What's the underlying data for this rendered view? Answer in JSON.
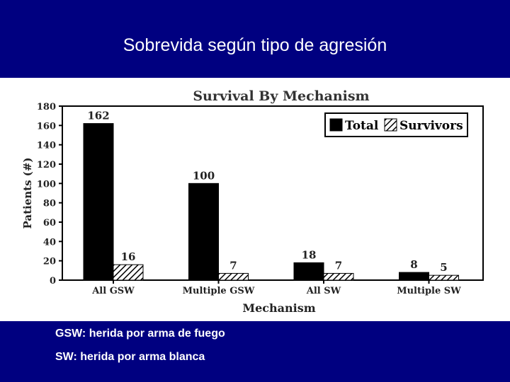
{
  "slide": {
    "title": "Sobrevida según tipo de agresión",
    "notes": [
      "GSW: herida por arma de fuego",
      "SW: herida por arma blanca"
    ]
  },
  "colors": {
    "background": "#000080",
    "panel": "#ffffff",
    "total": "#000000",
    "survivors_hatch": "#000000"
  },
  "chart_data": {
    "type": "bar",
    "title": "Survival By Mechanism",
    "xlabel": "Mechanism",
    "ylabel": "Patients (#)",
    "categories": [
      "All GSW",
      "Multiple GSW",
      "All SW",
      "Multiple SW"
    ],
    "series": [
      {
        "name": "Total",
        "values": [
          162,
          100,
          18,
          8
        ],
        "pattern": "solid"
      },
      {
        "name": "Survivors",
        "values": [
          16,
          7,
          7,
          5
        ],
        "pattern": "hatched"
      }
    ],
    "ylim": [
      0,
      180
    ],
    "yticks": [
      0,
      20,
      40,
      60,
      80,
      100,
      120,
      140,
      160,
      180
    ],
    "legend": "top-right",
    "grid": false
  }
}
